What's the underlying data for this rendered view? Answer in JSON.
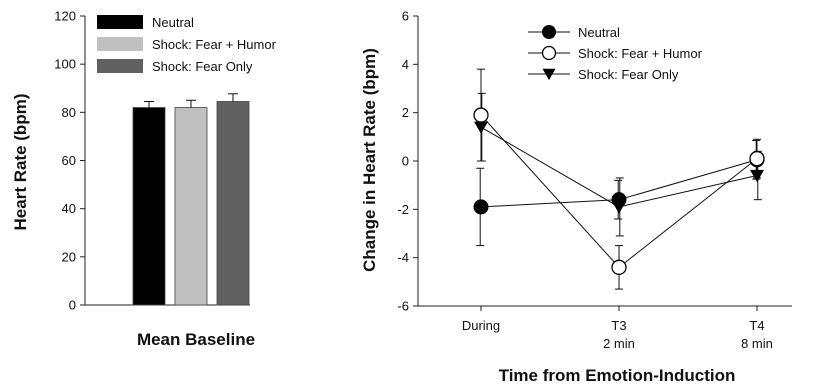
{
  "chart_data": [
    {
      "type": "bar",
      "categories": [
        "Mean Baseline"
      ],
      "xlabel": "Mean Baseline",
      "ylabel": "Heart Rate (bpm)",
      "ylim": [
        0,
        120
      ],
      "yticks": [
        0,
        20,
        40,
        60,
        80,
        100,
        120
      ],
      "grid": false,
      "legend_position": "top-left",
      "series": [
        {
          "name": "Neutral",
          "color": "#000000",
          "values": [
            82
          ],
          "error": [
            2.5
          ]
        },
        {
          "name": "Shock: Fear + Humor",
          "color": "#c0c0c0",
          "values": [
            82
          ],
          "error": [
            3
          ]
        },
        {
          "name": "Shock: Fear Only",
          "color": "#616161",
          "values": [
            84.5
          ],
          "error": [
            3.2
          ]
        }
      ]
    },
    {
      "type": "line",
      "x": [
        "During",
        "T3",
        "T4"
      ],
      "x_sublabels": [
        "",
        "2 min",
        "8 min"
      ],
      "xlabel": "Time from Emotion-Induction",
      "ylabel": "Change in Heart Rate (bpm)",
      "ylim": [
        -6,
        6
      ],
      "yticks": [
        -6,
        -4,
        -2,
        0,
        2,
        4,
        6
      ],
      "grid": false,
      "legend_position": "top-right",
      "series": [
        {
          "name": "Neutral",
          "marker": "filled-circle",
          "values": [
            -1.9,
            -1.6,
            0.05
          ],
          "error": [
            1.6,
            0.8,
            0.8
          ]
        },
        {
          "name": "Shock: Fear + Humor",
          "marker": "open-circle",
          "values": [
            1.9,
            -4.4,
            0.1
          ],
          "error": [
            1.9,
            0.9,
            0.8
          ]
        },
        {
          "name": "Shock: Fear Only",
          "marker": "filled-triangle-down",
          "values": [
            1.4,
            -1.9,
            -0.6
          ],
          "error": [
            1.4,
            1.2,
            1.0
          ]
        }
      ]
    }
  ]
}
